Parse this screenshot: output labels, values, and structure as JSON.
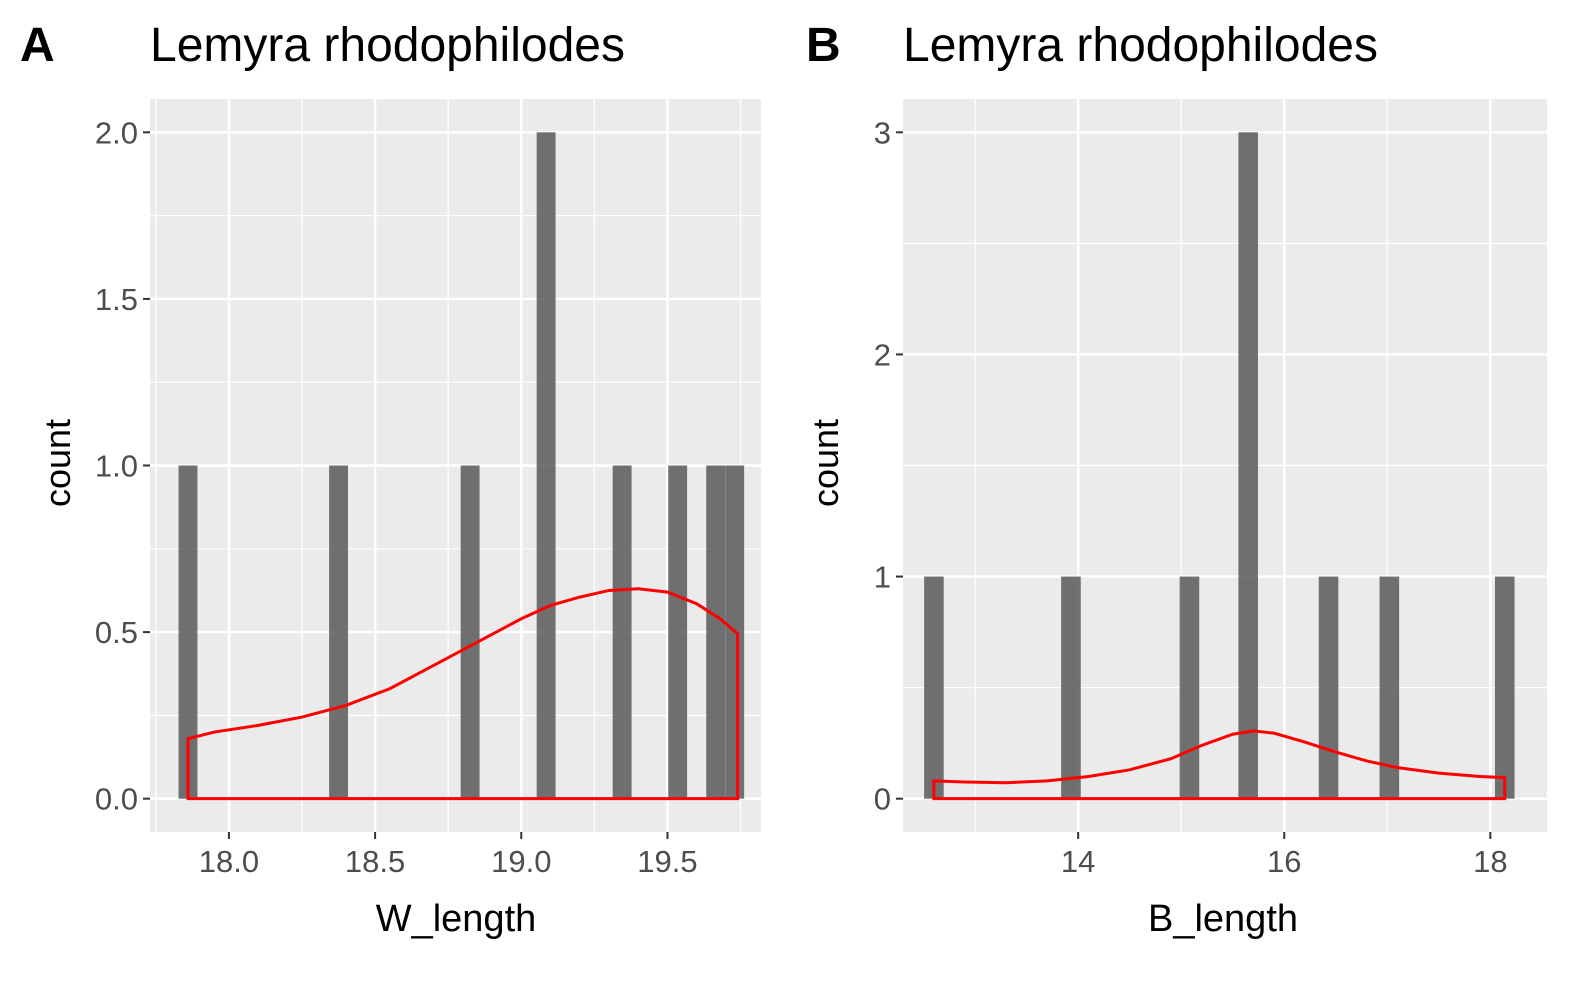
{
  "panels": [
    {
      "letter": "A",
      "title": "Lemyra rhodophilodes",
      "xlabel": "W_length",
      "ylabel": "count"
    },
    {
      "letter": "B",
      "title": "Lemyra rhodophilodes",
      "xlabel": "B_length",
      "ylabel": "count"
    }
  ],
  "chart_data": [
    {
      "type": "bar",
      "title": "Lemyra rhodophilodes",
      "xlabel": "W_length",
      "ylabel": "count",
      "xlim": [
        17.73,
        19.82
      ],
      "ylim": [
        -0.1,
        2.1
      ],
      "x_ticks": [
        "18.0",
        "18.5",
        "19.0",
        "19.5"
      ],
      "x_tick_values": [
        18.0,
        18.5,
        19.0,
        19.5
      ],
      "y_ticks": [
        "0.0",
        "0.5",
        "1.0",
        "1.5",
        "2.0"
      ],
      "y_tick_values": [
        0,
        0.5,
        1.0,
        1.5,
        2.0
      ],
      "bin_width": 0.0646,
      "bars": [
        {
          "x": 17.86,
          "count": 1
        },
        {
          "x": 18.375,
          "count": 1
        },
        {
          "x": 18.825,
          "count": 1
        },
        {
          "x": 19.085,
          "count": 2
        },
        {
          "x": 19.345,
          "count": 1
        },
        {
          "x": 19.535,
          "count": 1
        },
        {
          "x": 19.665,
          "count": 1
        },
        {
          "x": 19.73,
          "count": 1
        }
      ],
      "density_curve": {
        "color": "#ff0000",
        "points": [
          [
            17.86,
            0.18
          ],
          [
            17.95,
            0.2
          ],
          [
            18.1,
            0.22
          ],
          [
            18.25,
            0.245
          ],
          [
            18.4,
            0.28
          ],
          [
            18.55,
            0.33
          ],
          [
            18.7,
            0.4
          ],
          [
            18.85,
            0.47
          ],
          [
            19.0,
            0.54
          ],
          [
            19.1,
            0.58
          ],
          [
            19.2,
            0.605
          ],
          [
            19.3,
            0.625
          ],
          [
            19.4,
            0.63
          ],
          [
            19.5,
            0.62
          ],
          [
            19.6,
            0.585
          ],
          [
            19.68,
            0.54
          ],
          [
            19.74,
            0.495
          ]
        ]
      },
      "bar_color": "#595959",
      "panel_background": "#ebebeb"
    },
    {
      "type": "bar",
      "title": "Lemyra rhodophilodes",
      "xlabel": "B_length",
      "ylabel": "count",
      "xlim": [
        12.3,
        18.55
      ],
      "ylim": [
        -0.15,
        3.15
      ],
      "x_ticks": [
        "14",
        "16",
        "18"
      ],
      "x_tick_values": [
        14,
        16,
        18
      ],
      "y_ticks": [
        "0",
        "1",
        "2",
        "3"
      ],
      "y_tick_values": [
        0,
        1,
        2,
        3
      ],
      "bin_width": 0.19,
      "bars": [
        {
          "x": 12.6,
          "count": 1
        },
        {
          "x": 13.93,
          "count": 1
        },
        {
          "x": 15.08,
          "count": 1
        },
        {
          "x": 15.65,
          "count": 3
        },
        {
          "x": 16.43,
          "count": 1
        },
        {
          "x": 17.02,
          "count": 1
        },
        {
          "x": 18.14,
          "count": 1
        }
      ],
      "density_curve": {
        "color": "#ff0000",
        "points": [
          [
            12.6,
            0.08
          ],
          [
            12.9,
            0.075
          ],
          [
            13.3,
            0.072
          ],
          [
            13.7,
            0.08
          ],
          [
            14.1,
            0.1
          ],
          [
            14.5,
            0.13
          ],
          [
            14.9,
            0.18
          ],
          [
            15.2,
            0.24
          ],
          [
            15.5,
            0.29
          ],
          [
            15.7,
            0.305
          ],
          [
            15.9,
            0.295
          ],
          [
            16.2,
            0.255
          ],
          [
            16.5,
            0.21
          ],
          [
            16.8,
            0.17
          ],
          [
            17.1,
            0.14
          ],
          [
            17.5,
            0.115
          ],
          [
            17.9,
            0.1
          ],
          [
            18.14,
            0.095
          ]
        ]
      },
      "bar_color": "#595959",
      "panel_background": "#ebebeb"
    }
  ]
}
